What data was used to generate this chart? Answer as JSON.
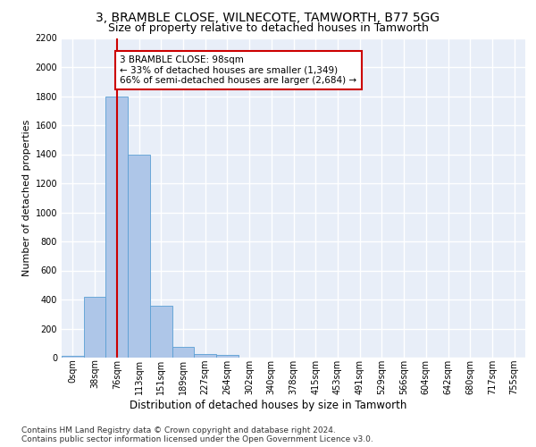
{
  "title1": "3, BRAMBLE CLOSE, WILNECOTE, TAMWORTH, B77 5GG",
  "title2": "Size of property relative to detached houses in Tamworth",
  "xlabel": "Distribution of detached houses by size in Tamworth",
  "ylabel": "Number of detached properties",
  "bar_labels": [
    "0sqm",
    "38sqm",
    "76sqm",
    "113sqm",
    "151sqm",
    "189sqm",
    "227sqm",
    "264sqm",
    "302sqm",
    "340sqm",
    "378sqm",
    "415sqm",
    "453sqm",
    "491sqm",
    "529sqm",
    "566sqm",
    "604sqm",
    "642sqm",
    "680sqm",
    "717sqm",
    "755sqm"
  ],
  "bar_values": [
    15,
    420,
    1800,
    1400,
    355,
    75,
    25,
    20,
    0,
    0,
    0,
    0,
    0,
    0,
    0,
    0,
    0,
    0,
    0,
    0,
    0
  ],
  "bar_color": "#aec6e8",
  "bar_edge_color": "#5a9fd4",
  "vline_x": 2.5,
  "vline_color": "#cc0000",
  "annotation_text": "3 BRAMBLE CLOSE: 98sqm\n← 33% of detached houses are smaller (1,349)\n66% of semi-detached houses are larger (2,684) →",
  "annotation_box_color": "#ffffff",
  "annotation_box_edge_color": "#cc0000",
  "footer_line1": "Contains HM Land Registry data © Crown copyright and database right 2024.",
  "footer_line2": "Contains public sector information licensed under the Open Government Licence v3.0.",
  "ylim": [
    0,
    2200
  ],
  "background_color": "#e8eef8",
  "grid_color": "#ffffff",
  "title1_fontsize": 10,
  "title2_fontsize": 9,
  "tick_fontsize": 7,
  "ylabel_fontsize": 8,
  "xlabel_fontsize": 8.5,
  "footer_fontsize": 6.5,
  "annotation_fontsize": 7.5
}
